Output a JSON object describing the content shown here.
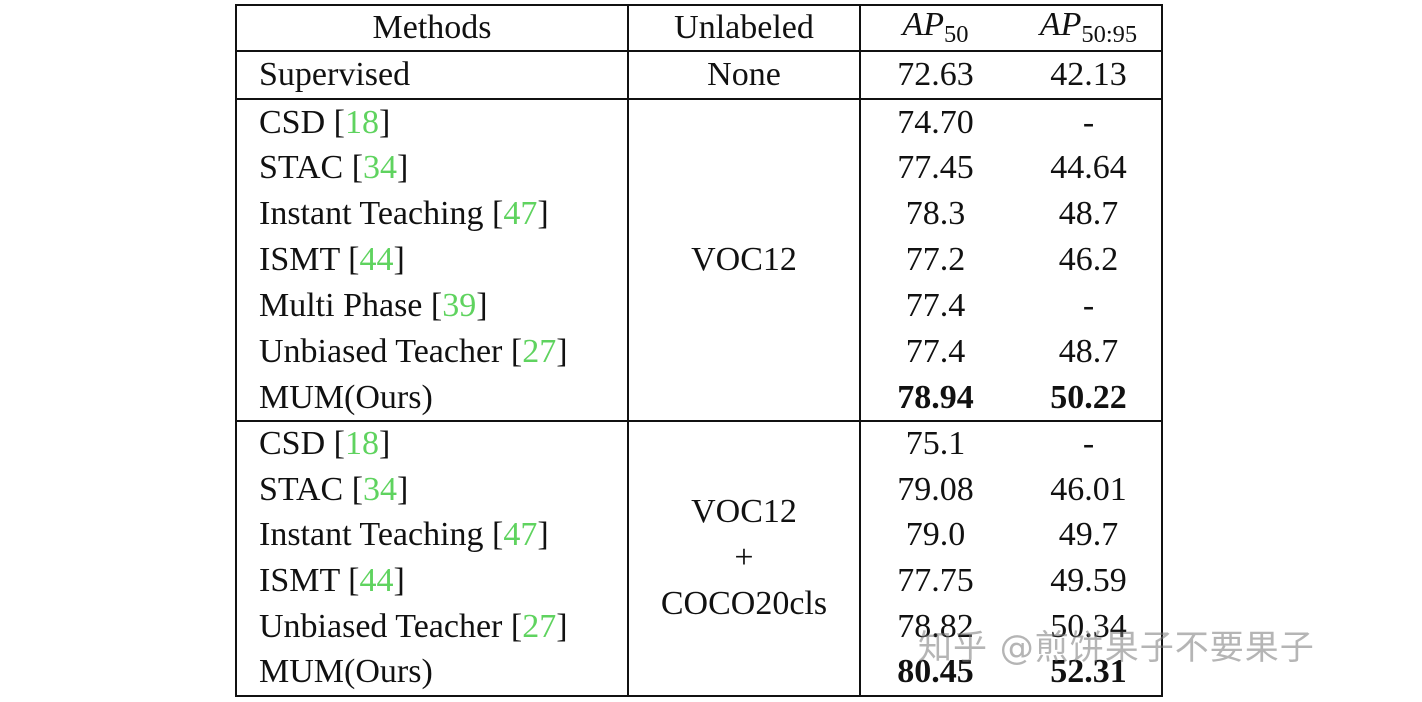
{
  "table": {
    "headers": {
      "methods": "Methods",
      "unlabeled": "Unlabeled",
      "ap50_base": "AP",
      "ap50_sub": "50",
      "ap5095_base": "AP",
      "ap5095_sub": "50:95"
    },
    "supervised": {
      "method": "Supervised",
      "unlabeled": "None",
      "ap50": "72.63",
      "ap5095": "42.13"
    },
    "group1": {
      "unlabeled": "VOC12",
      "rows": [
        {
          "name": "CSD",
          "ref": "18",
          "ap50": "74.70",
          "ap5095": "-"
        },
        {
          "name": "STAC",
          "ref": "34",
          "ap50": "77.45",
          "ap5095": "44.64"
        },
        {
          "name": "Instant Teaching",
          "ref": "47",
          "ap50": "78.3",
          "ap5095": "48.7"
        },
        {
          "name": "ISMT",
          "ref": "44",
          "ap50": "77.2",
          "ap5095": "46.2"
        },
        {
          "name": "Multi Phase",
          "ref": "39",
          "ap50": "77.4",
          "ap5095": "-"
        },
        {
          "name": "Unbiased Teacher",
          "ref": "27",
          "ap50": "77.4",
          "ap5095": "48.7"
        },
        {
          "name": "MUM(Ours)",
          "ref": "",
          "ap50": "78.94",
          "ap5095": "50.22"
        }
      ]
    },
    "group2": {
      "unlabeled_line1": "VOC12",
      "unlabeled_line2": "+",
      "unlabeled_line3": "COCO20cls",
      "rows": [
        {
          "name": "CSD",
          "ref": "18",
          "ap50": "75.1",
          "ap5095": "-"
        },
        {
          "name": "STAC",
          "ref": "34",
          "ap50": "79.08",
          "ap5095": "46.01"
        },
        {
          "name": "Instant Teaching",
          "ref": "47",
          "ap50": "79.0",
          "ap5095": "49.7"
        },
        {
          "name": "ISMT",
          "ref": "44",
          "ap50": "77.75",
          "ap5095": "49.59"
        },
        {
          "name": "Unbiased Teacher",
          "ref": "27",
          "ap50": "78.82",
          "ap5095": "50.34"
        },
        {
          "name": "MUM(Ours)",
          "ref": "",
          "ap50": "80.45",
          "ap5095": "52.31"
        }
      ]
    }
  },
  "watermark": "知乎 @煎饼果子不要果子",
  "colors": {
    "citation": "#5fd35f",
    "rule": "#111111"
  }
}
